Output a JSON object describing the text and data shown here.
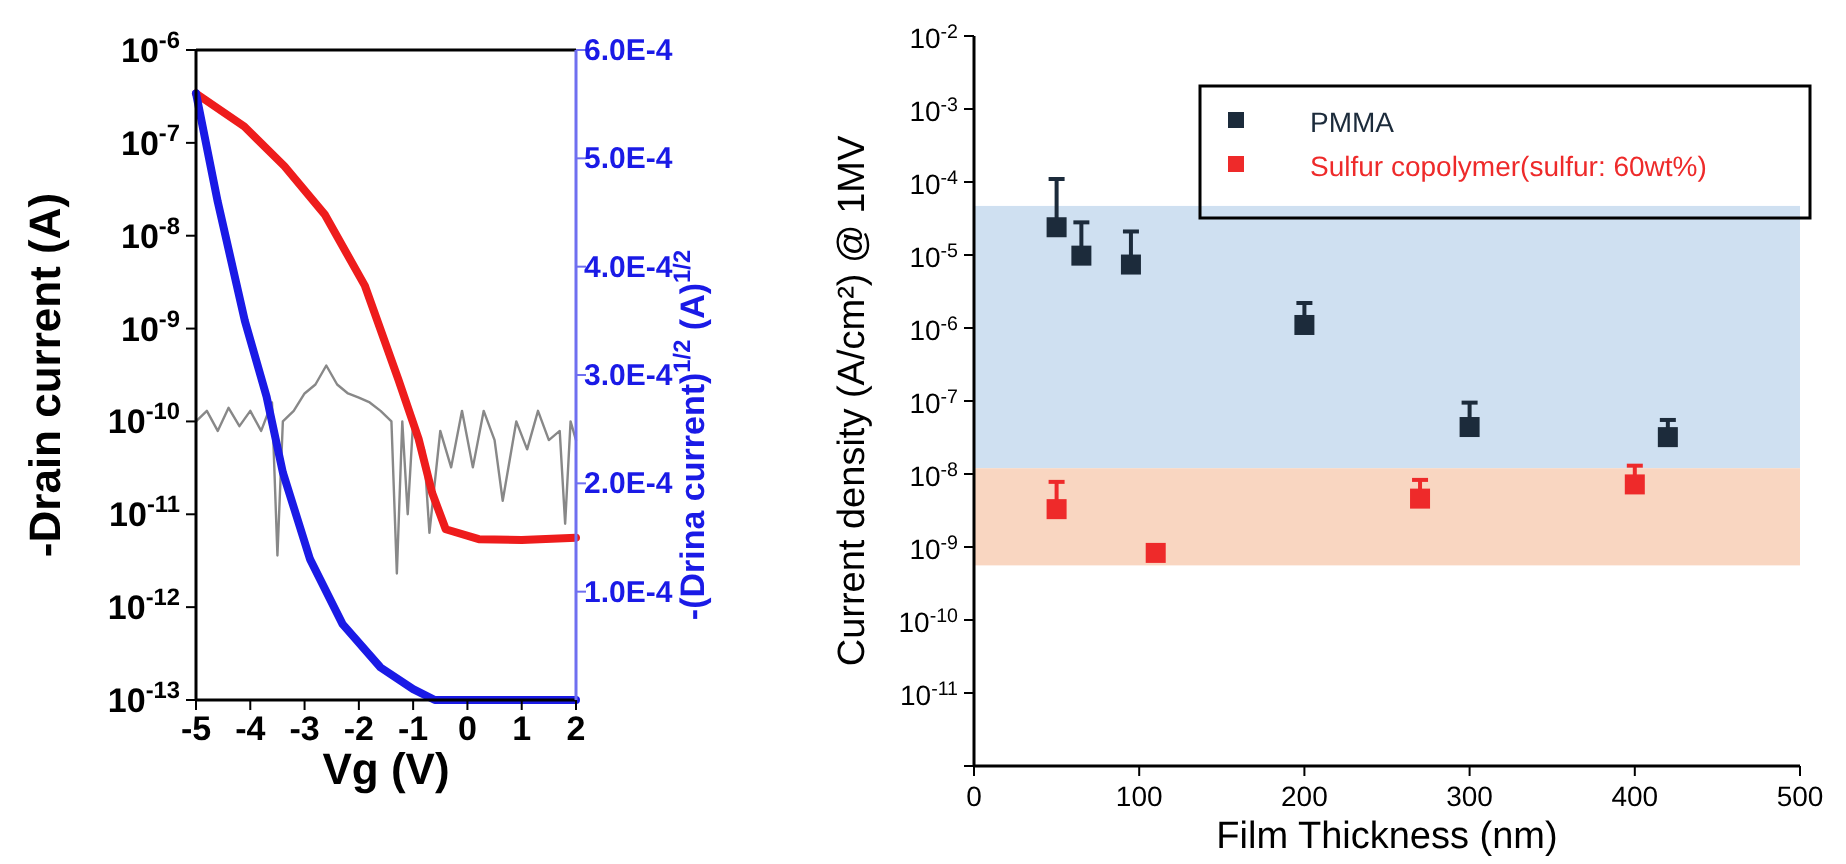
{
  "chart_data": [
    {
      "type": "line",
      "xlabel": "Vg (V)",
      "ylabel": "-Drain current (A)",
      "y2label": "-(Drina current)$^{1/2}$ (A)$^{1/2}$",
      "log": "y",
      "legend": false,
      "grid": false,
      "line_style": "solid",
      "marker": "none",
      "xlim": [
        -5,
        2
      ],
      "xticks": [
        -5,
        -4,
        -3,
        -2,
        -1,
        0,
        1,
        2
      ],
      "ylim": [
        1e-13,
        1e-06
      ],
      "yticks": [
        {
          "value": 1e-06,
          "label": "10$^{-6}$"
        },
        {
          "value": 1e-07,
          "label": "10$^{-7}$"
        },
        {
          "value": 1e-08,
          "label": "10$^{-8}$"
        },
        {
          "value": 1e-09,
          "label": "10$^{-9}$"
        },
        {
          "value": 1e-10,
          "label": "10$^{-10}$"
        },
        {
          "value": 1e-11,
          "label": "10$^{-11}$"
        },
        {
          "value": 1e-12,
          "label": "10$^{-12}$"
        },
        {
          "value": 1e-13,
          "label": "10$^{-13}$"
        }
      ],
      "y2lim": [
        0,
        0.0006
      ],
      "y2ticks": [
        {
          "value": 0.0001,
          "label": "1.0E-4"
        },
        {
          "value": 0.0002,
          "label": "2.0E-4"
        },
        {
          "value": 0.0003,
          "label": "3.0E-4"
        },
        {
          "value": 0.0004,
          "label": "4.0E-4"
        },
        {
          "value": 0.0005,
          "label": "5.0E-4"
        },
        {
          "value": 0.0006,
          "label": "6.0E-4"
        }
      ],
      "series": [
        {
          "color": "#888888",
          "x": [
            -5,
            -4.8,
            -4.6,
            -4.4,
            -4.2,
            -4.0,
            -3.8,
            -3.6,
            -3.5,
            -3.4,
            -3.2,
            -3.0,
            -2.8,
            -2.6,
            -2.4,
            -2.2,
            -2.0,
            -1.8,
            -1.6,
            -1.4,
            -1.3,
            -1.2,
            -1.1,
            -1.0,
            -0.8,
            -0.7,
            -0.5,
            -0.3,
            -0.1,
            0.1,
            0.3,
            0.5,
            0.65,
            0.9,
            1.1,
            1.3,
            1.5,
            1.7,
            1.8,
            1.9,
            2
          ],
          "values": [
            1e-10,
            1.3e-10,
            7.9e-11,
            1.4e-10,
            8.9e-11,
            1.3e-10,
            7.9e-11,
            1.6e-10,
            3.6e-12,
            1e-10,
            1.3e-10,
            2e-10,
            2.5e-10,
            4e-10,
            2.5e-10,
            2e-10,
            1.8e-10,
            1.6e-10,
            1.3e-10,
            1e-10,
            2.3e-12,
            1e-10,
            1e-11,
            1e-10,
            5e-11,
            6.3e-12,
            7.9e-11,
            3.2e-11,
            1.3e-10,
            3.2e-11,
            1.3e-10,
            6.3e-11,
            1.4e-11,
            1e-10,
            5e-11,
            1.3e-10,
            6.3e-11,
            7.9e-11,
            7.9e-12,
            1e-10,
            6.3e-11
          ]
        },
        {
          "color": "#ee1c1c",
          "x": [
            -5,
            -4.11,
            -3.37,
            -2.63,
            -1.89,
            -1.27,
            -0.9,
            -0.65,
            -0.4,
            0.21,
            1.0,
            2
          ],
          "values": [
            3.4e-07,
            1.5e-07,
            5.6e-08,
            1.7e-08,
            2.9e-09,
            2.8e-10,
            6.5e-11,
            1.7e-11,
            6.9e-12,
            5.4e-12,
            5.3e-12,
            5.6e-12
          ]
        },
        {
          "color": "#1a1ae6",
          "axis": "y2",
          "x": [
            -5,
            -4.6,
            -4.1,
            -3.7,
            -3.4,
            -2.9,
            -2.3,
            -1.6,
            -1.0,
            -0.6,
            2
          ],
          "values": [
            0.00056,
            0.00046,
            0.00035,
            0.00028,
            0.00021,
            0.00013,
            7e-05,
            3e-05,
            1e-05,
            0,
            0
          ]
        }
      ]
    },
    {
      "type": "scatter",
      "xlabel": "Film Thickness (nm)",
      "ylabel": "Current density (A/cm²) @ 1MV",
      "log": "y",
      "legend": "top right",
      "grid": false,
      "marker": "square",
      "xlim": [
        0,
        500
      ],
      "xticks": [
        0,
        100,
        200,
        300,
        400,
        500
      ],
      "ylim": [
        1e-12,
        0.01
      ],
      "yticks": [
        {
          "value": 1e-12,
          "label": null
        },
        {
          "value": 1e-11,
          "label": "10$^{-11}$"
        },
        {
          "value": 1e-10,
          "label": "10$^{-10}$"
        },
        {
          "value": 1e-09,
          "label": "10$^{-9}$"
        },
        {
          "value": 1e-08,
          "label": "10$^{-8}$"
        },
        {
          "value": 1e-07,
          "label": "10$^{-7}$"
        },
        {
          "value": 1e-06,
          "label": "10$^{-6}$"
        },
        {
          "value": 1e-05,
          "label": "10$^{-5}$"
        },
        {
          "value": 0.0001,
          "label": "10$^{-4}$"
        },
        {
          "value": 0.001,
          "label": "10$^{-3}$"
        },
        {
          "value": 0.01,
          "label": "10$^{-2}$"
        }
      ],
      "bands": [
        {
          "axis": "y",
          "from": 1.2e-08,
          "to": 4.7e-05,
          "color": "#cfe0f1"
        },
        {
          "axis": "y",
          "from": 5.6e-10,
          "to": 1.2e-08,
          "color": "#f9d6c1"
        }
      ],
      "series": [
        {
          "name": "PMMA",
          "color": "#1c2b3b",
          "x": [
            50,
            65,
            95,
            200,
            300,
            420
          ],
          "values": [
            2.4e-05,
            9.8e-06,
            7.4e-06,
            1.1e-06,
            4.4e-08,
            3.2e-08
          ],
          "errors": [
            [
              2.4e-05,
              0.00011
            ],
            [
              9.8e-06,
              2.8e-05
            ],
            [
              7.4e-06,
              2.1e-05
            ],
            [
              1.1e-06,
              2.2e-06
            ],
            [
              4.4e-08,
              9.5e-08
            ],
            [
              3.2e-08,
              5.5e-08
            ]
          ]
        },
        {
          "name": "Sulfur copolymer(sulfur: 60wt%)",
          "color": "#ee2a2a",
          "x": [
            50,
            110,
            270,
            400
          ],
          "values": [
            3.3e-09,
            8.3e-10,
            4.6e-09,
            7.2e-09
          ],
          "errors": [
            [
              3.3e-09,
              7.8e-09
            ],
            null,
            [
              4.6e-09,
              8.3e-09
            ],
            [
              7.2e-09,
              1.3e-08
            ]
          ]
        }
      ]
    }
  ]
}
